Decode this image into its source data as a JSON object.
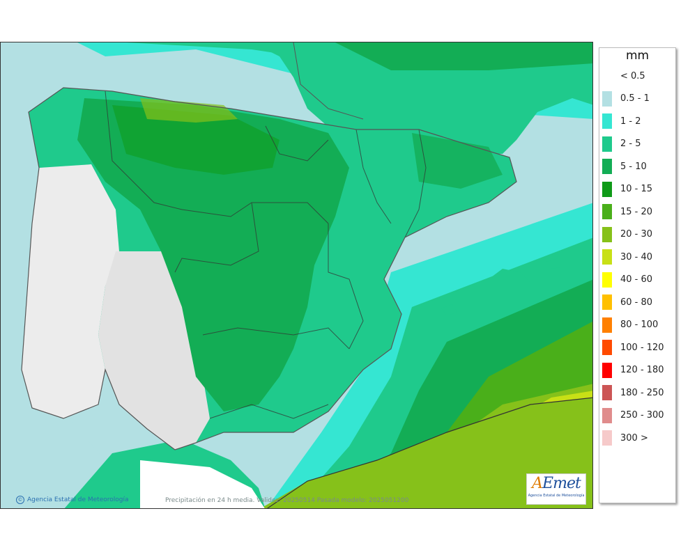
{
  "legend": {
    "unit": "mm",
    "items": [
      {
        "label": "< 0.5",
        "color": "#ffffff"
      },
      {
        "label": "0.5 - 1",
        "color": "#b3e0e3"
      },
      {
        "label": "1 - 2",
        "color": "#35e6d2"
      },
      {
        "label": "2 - 5",
        "color": "#1fca8c"
      },
      {
        "label": "5 - 10",
        "color": "#13ad55"
      },
      {
        "label": "10 - 15",
        "color": "#0f9a18"
      },
      {
        "label": "15 - 20",
        "color": "#4aaf1a"
      },
      {
        "label": "20 - 30",
        "color": "#86c11a"
      },
      {
        "label": "30 - 40",
        "color": "#c8e016"
      },
      {
        "label": "40 - 60",
        "color": "#ffff00"
      },
      {
        "label": "60 - 80",
        "color": "#ffc000"
      },
      {
        "label": "80 - 100",
        "color": "#ff8000"
      },
      {
        "label": "100 - 120",
        "color": "#ff4a00"
      },
      {
        "label": "120 - 180",
        "color": "#ff0000"
      },
      {
        "label": "180 - 250",
        "color": "#cc5555"
      },
      {
        "label": "250 - 300",
        "color": "#e08c8c"
      },
      {
        "label": "300 >",
        "color": "#f6caca"
      }
    ]
  },
  "footer": {
    "credit": "Agencia Estatal de Meteorología",
    "caption": "Precipitación en 24 h media. Validez: 20250514 Pasada modelo: 2025051200"
  },
  "logo": {
    "brand_a": "A",
    "brand_rest": "Emet",
    "subtitle": "Agencia Estatal de Meteorología"
  }
}
